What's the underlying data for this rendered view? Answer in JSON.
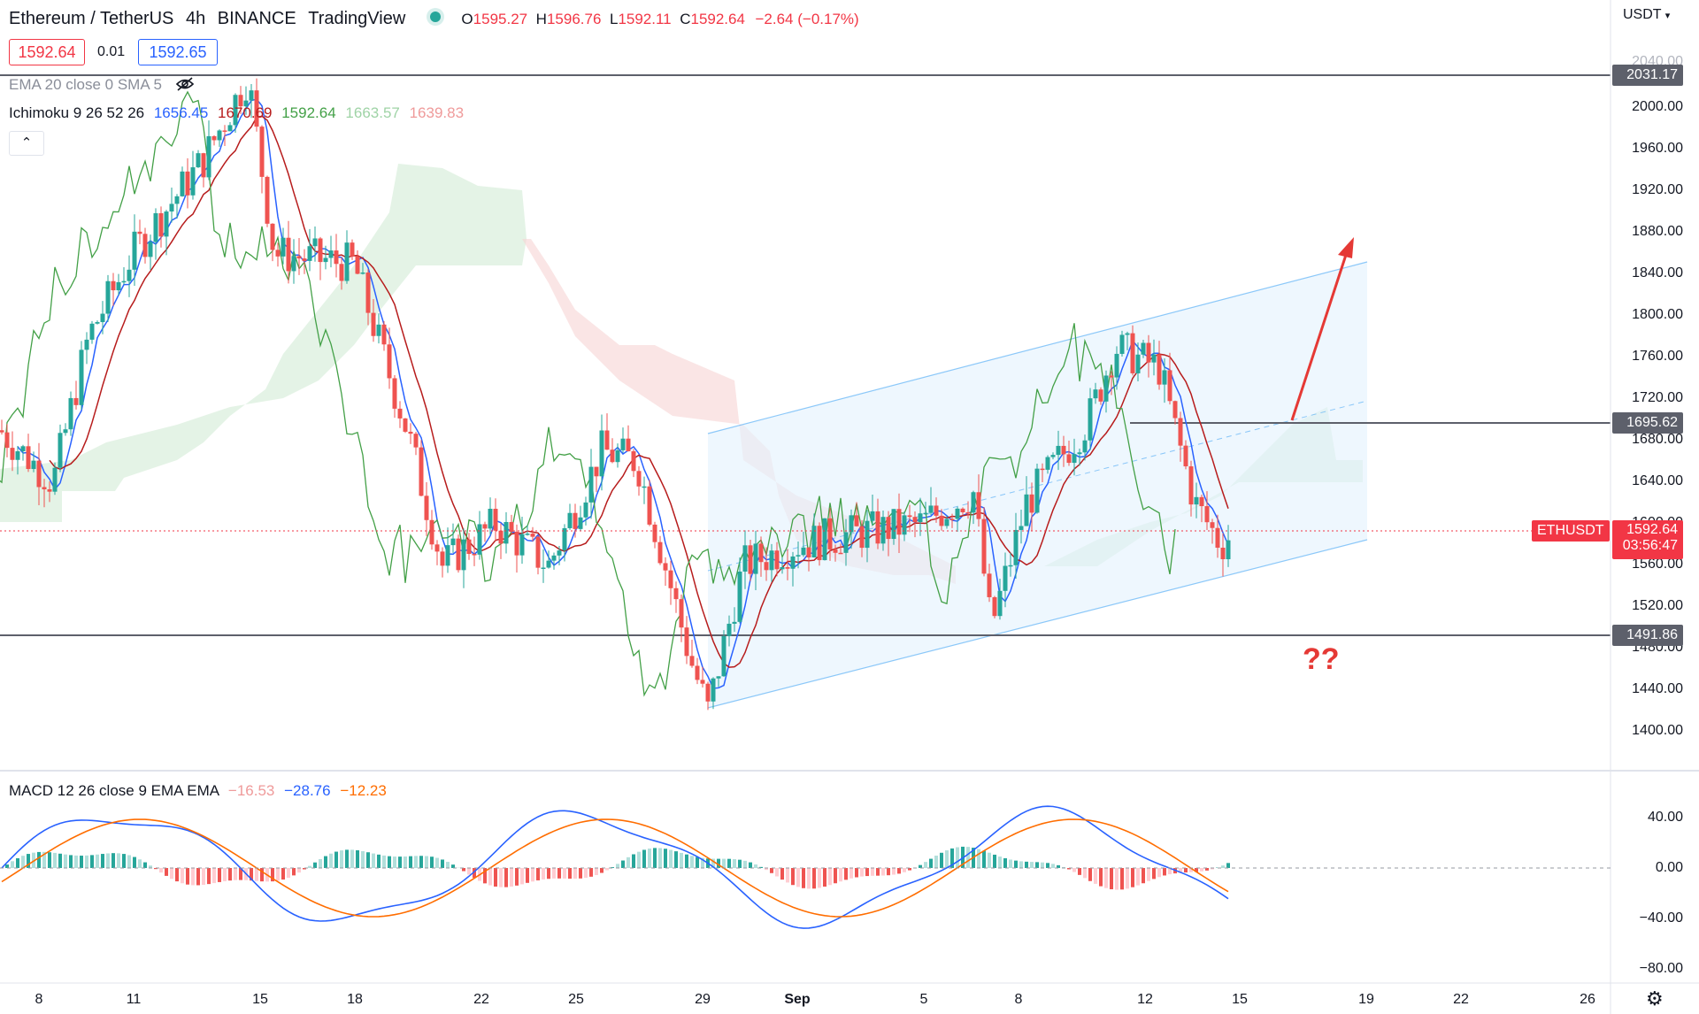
{
  "header": {
    "symbol": "Ethereum / TetherUS",
    "interval": "4h",
    "exchange": "BINANCE",
    "platform": "TradingView",
    "open_label": "O",
    "open": "1595.27",
    "high_label": "H",
    "high": "1596.76",
    "low_label": "L",
    "low": "1592.11",
    "close_label": "C",
    "close": "1592.64",
    "change": "−2.64 (−0.17%)"
  },
  "quote": {
    "bid": "1592.64",
    "spread": "0.01",
    "ask": "1592.65"
  },
  "indicators": {
    "ema_label": "EMA 20 close 0 SMA 5",
    "ichimoku_label": "Ichimoku 9 26 52 26",
    "ichimoku_values": [
      "1656.45",
      "1670.69",
      "1592.64",
      "1663.57",
      "1639.83"
    ],
    "macd_label": "MACD 12 26 close 9 EMA EMA",
    "macd_values": [
      "−16.53",
      "−28.76",
      "−12.23"
    ]
  },
  "price_axis": {
    "currency": "USDT",
    "ticks": [
      "2040.00",
      "2000.00",
      "1960.00",
      "1920.00",
      "1880.00",
      "1840.00",
      "1800.00",
      "1760.00",
      "1720.00",
      "1680.00",
      "1640.00",
      "1600.00",
      "1560.00",
      "1520.00",
      "1480.00",
      "1440.00",
      "1400.00"
    ],
    "levels": [
      "2031.17",
      "1695.62",
      "1491.86"
    ],
    "last_symbol": "ETHUSDT",
    "last_price": "1592.64",
    "countdown": "03:56:47"
  },
  "macd_axis": {
    "ticks": [
      "40.00",
      "0.00",
      "−40.00",
      "−80.00"
    ]
  },
  "time_axis": {
    "labels": [
      "8",
      "11",
      "15",
      "18",
      "22",
      "25",
      "29",
      "Sep",
      "5",
      "8",
      "12",
      "15",
      "19",
      "22",
      "26"
    ]
  },
  "annotation": {
    "question": "??"
  },
  "colors": {
    "up": "#26a69a",
    "down": "#ef5350",
    "tenkan": "#2962ff",
    "kijun": "#b71c1c",
    "chikou": "#43a047",
    "channel": "#2196f3",
    "arrow": "#e53935",
    "macd": "#2962ff",
    "signal": "#ff6d00"
  }
}
